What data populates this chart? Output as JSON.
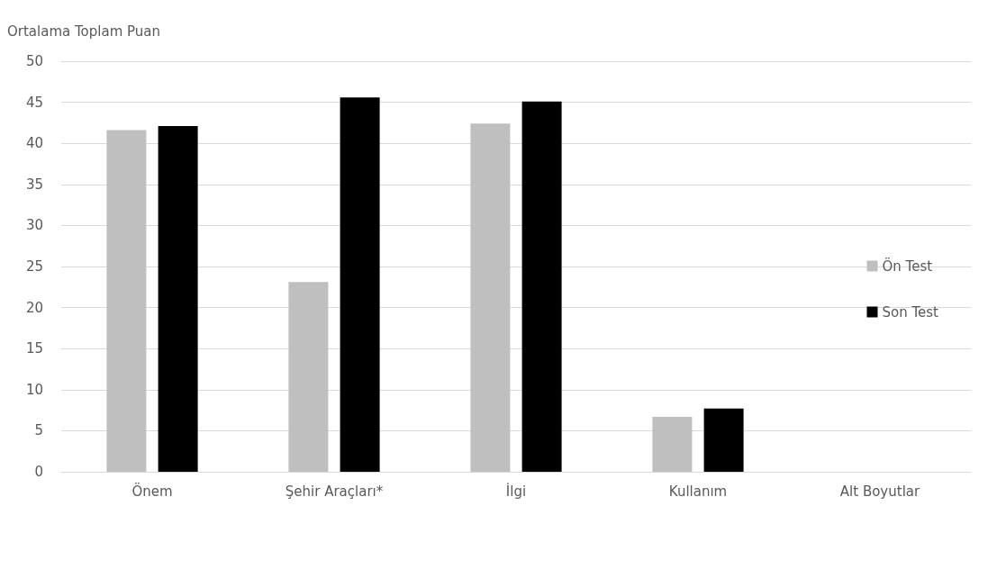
{
  "chart_data": {
    "type": "bar",
    "ylabel": "Ortalama Toplam Puan",
    "categories": [
      "Önem",
      "Şehir Araçları*",
      "İlgi",
      "Kullanım",
      "Alt Boyutlar"
    ],
    "series": [
      {
        "name": "Ön Test",
        "color": "#bfbfbf",
        "values": [
          41.6,
          23.1,
          42.4,
          6.7,
          null
        ]
      },
      {
        "name": "Son Test",
        "color": "#000000",
        "values": [
          42.1,
          45.6,
          45.1,
          7.7,
          null
        ]
      }
    ],
    "ylim": [
      0,
      50
    ],
    "yticks": [
      0,
      5,
      10,
      15,
      20,
      25,
      30,
      35,
      40,
      45,
      50
    ],
    "grid": "y",
    "legend": "right"
  }
}
